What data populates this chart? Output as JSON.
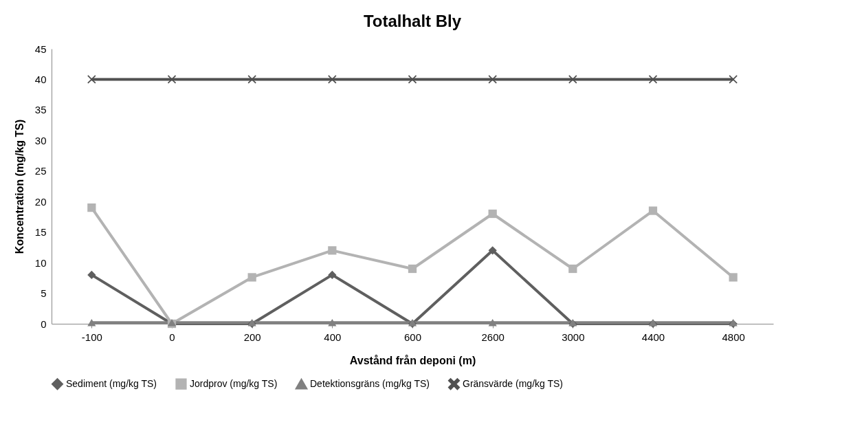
{
  "chart_data": {
    "type": "line",
    "title": "Totalhalt Bly",
    "xlabel": "Avstånd från deponi (m)",
    "ylabel": "Koncentration (mg/kg TS)",
    "categories": [
      "-100",
      "0",
      "200",
      "400",
      "600",
      "2600",
      "3000",
      "4400",
      "4800"
    ],
    "series": [
      {
        "name": "Sediment (mg/kg TS)",
        "color": "#5f5f5f",
        "marker": "diamond",
        "values": [
          8,
          0,
          0,
          8,
          0,
          12,
          0,
          0,
          0
        ]
      },
      {
        "name": "Jordprov (mg/kg TS)",
        "color": "#b3b3b3",
        "marker": "square",
        "values": [
          19,
          0,
          7.6,
          12,
          9,
          18,
          9,
          18.5,
          7.6
        ]
      },
      {
        "name": "Detektionsgräns (mg/kg TS)",
        "color": "#808080",
        "marker": "triangle",
        "values": [
          0.2,
          0.2,
          0.2,
          0.2,
          0.2,
          0.2,
          0.2,
          0.2,
          0.2
        ]
      },
      {
        "name": "Gränsvärde (mg/kg TS)",
        "color": "#505050",
        "marker": "cross",
        "values": [
          40,
          40,
          40,
          40,
          40,
          40,
          40,
          40,
          40
        ]
      }
    ],
    "ylim": [
      0,
      45
    ],
    "yticks": [
      0,
      5,
      10,
      15,
      20,
      25,
      30,
      35,
      40,
      45
    ],
    "grid": false,
    "legend": "bottom",
    "line_style": "solid"
  }
}
